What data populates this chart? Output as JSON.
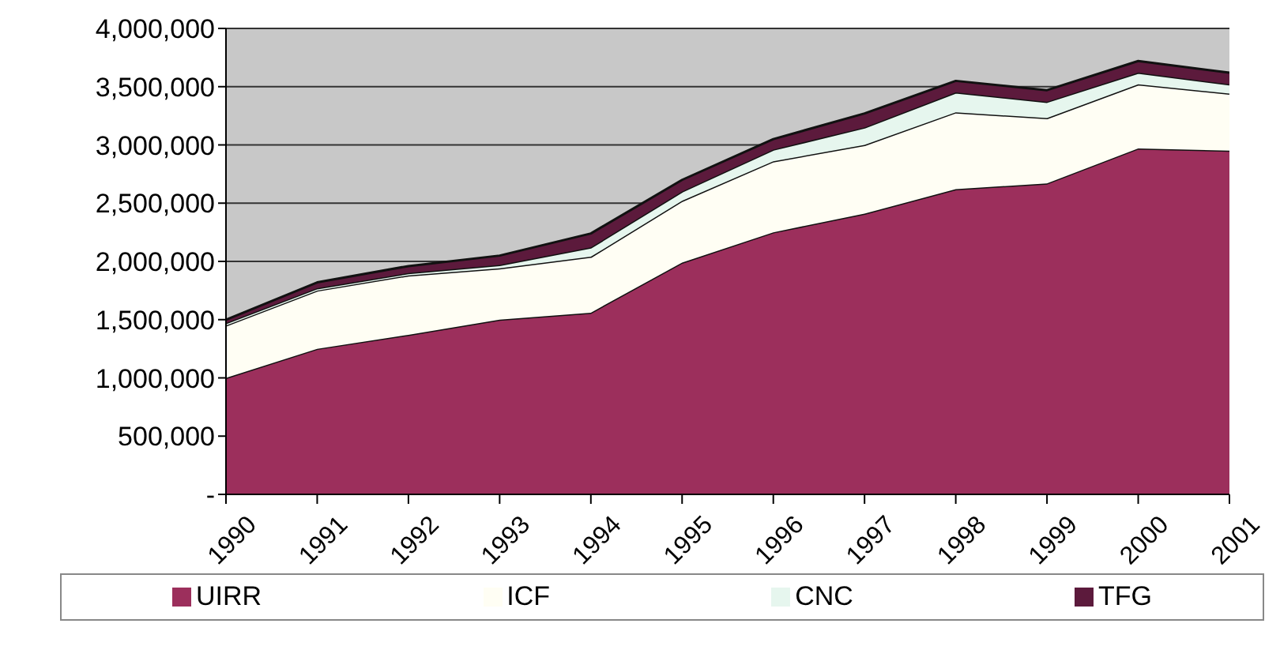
{
  "chart_data": {
    "type": "area",
    "stacked": true,
    "categories": [
      "1990",
      "1991",
      "1992",
      "1993",
      "1994",
      "1995",
      "1996",
      "1997",
      "1998",
      "1999",
      "2000",
      "2001"
    ],
    "series": [
      {
        "name": "UIRR",
        "color": "#9c2f5c",
        "values": [
          1000000,
          1250000,
          1370000,
          1500000,
          1560000,
          1990000,
          2250000,
          2410000,
          2620000,
          2670000,
          2970000,
          2950000
        ]
      },
      {
        "name": "ICF",
        "color": "#fffef4",
        "values": [
          450000,
          500000,
          510000,
          440000,
          480000,
          530000,
          610000,
          590000,
          660000,
          560000,
          550000,
          490000
        ]
      },
      {
        "name": "CNC",
        "color": "#e6f6ee",
        "values": [
          20000,
          20000,
          20000,
          30000,
          80000,
          80000,
          100000,
          150000,
          170000,
          140000,
          100000,
          80000
        ]
      },
      {
        "name": "TFG",
        "color": "#5c1a3c",
        "values": [
          30000,
          50000,
          60000,
          80000,
          120000,
          100000,
          90000,
          120000,
          100000,
          100000,
          100000,
          100000
        ]
      }
    ],
    "ylim": [
      0,
      4000000
    ],
    "yticks": [
      {
        "value": 0,
        "label": "-"
      },
      {
        "value": 500000,
        "label": "500,000"
      },
      {
        "value": 1000000,
        "label": "1,000,000"
      },
      {
        "value": 1500000,
        "label": "1,500,000"
      },
      {
        "value": 2000000,
        "label": "2,000,000"
      },
      {
        "value": 2500000,
        "label": "2,500,000"
      },
      {
        "value": 3000000,
        "label": "3,000,000"
      },
      {
        "value": 3500000,
        "label": "3,500,000"
      },
      {
        "value": 4000000,
        "label": "4,000,000"
      }
    ],
    "grid": "y",
    "legend": "bottom"
  }
}
